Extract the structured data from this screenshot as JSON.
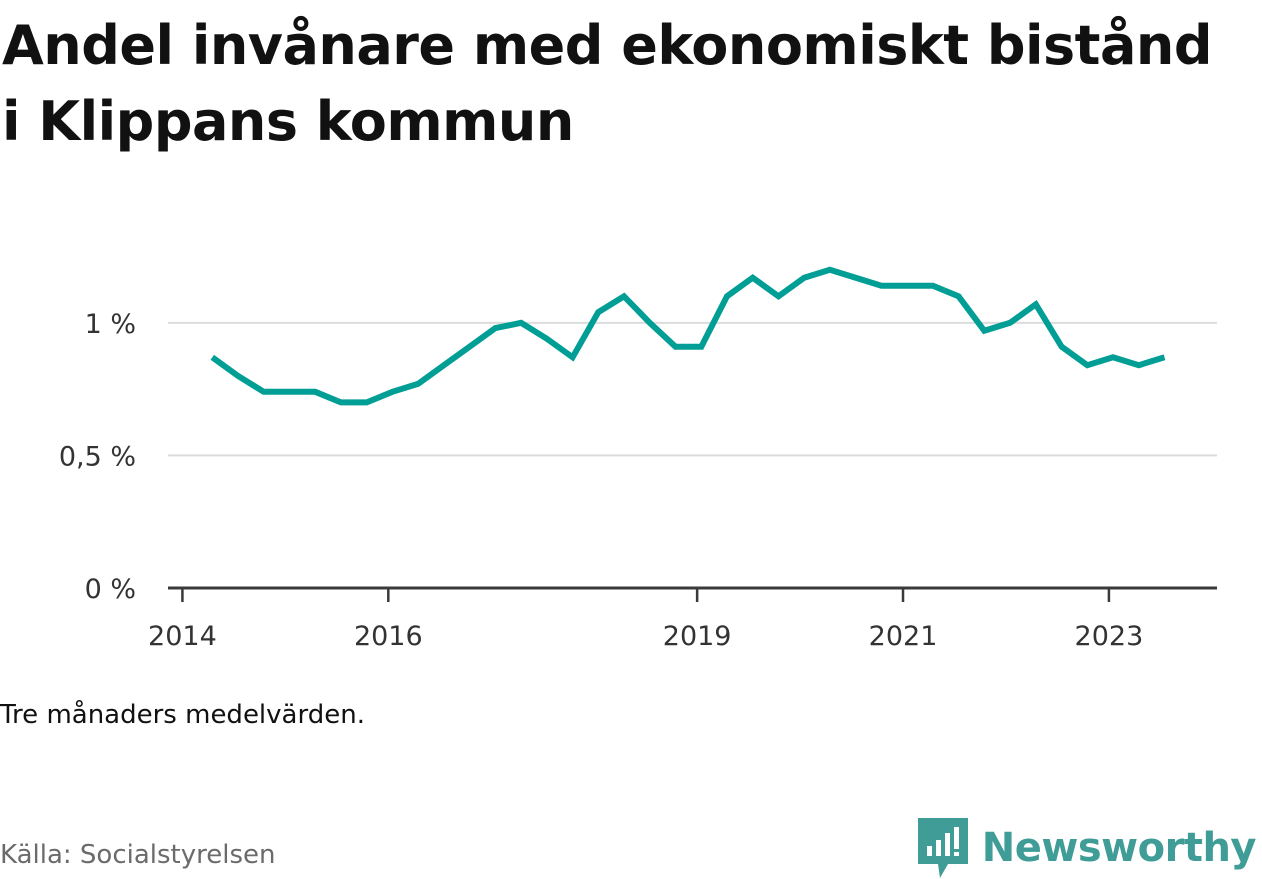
{
  "title": "Andel invånare med ekonomiskt bistånd i Klippans kommun",
  "note": "Tre månaders medelvärden.",
  "source": "Källa: Socialstyrelsen",
  "brand": {
    "name": "Newsworthy",
    "icon": "newsworthy-logo-icon",
    "color": "#3f9c96"
  },
  "chart_data": {
    "type": "line",
    "title": "Andel invånare med ekonomiskt bistånd i Klippans kommun",
    "xlabel": "",
    "ylabel": "",
    "y_ticks": [
      {
        "value": 0,
        "label": "0 %"
      },
      {
        "value": 0.5,
        "label": "0,5 %"
      },
      {
        "value": 1,
        "label": "1 %"
      }
    ],
    "x_ticks": [
      {
        "value": 2014.0,
        "label": "2014"
      },
      {
        "value": 2016.0,
        "label": "2016"
      },
      {
        "value": 2019.0,
        "label": "2019"
      },
      {
        "value": 2021.0,
        "label": "2021"
      },
      {
        "value": 2023.0,
        "label": "2023"
      }
    ],
    "xlim": [
      2013.86,
      2024.05
    ],
    "ylim": [
      0,
      1.35
    ],
    "grid": true,
    "color": "#009e94",
    "series": [
      {
        "name": "",
        "points": [
          [
            2014.29,
            0.87
          ],
          [
            2014.54,
            0.8
          ],
          [
            2014.79,
            0.74
          ],
          [
            2015.04,
            0.74
          ],
          [
            2015.29,
            0.74
          ],
          [
            2015.54,
            0.7
          ],
          [
            2015.79,
            0.7
          ],
          [
            2016.04,
            0.74
          ],
          [
            2016.29,
            0.77
          ],
          [
            2016.54,
            0.84
          ],
          [
            2016.79,
            0.91
          ],
          [
            2017.04,
            0.98
          ],
          [
            2017.29,
            1.0
          ],
          [
            2017.54,
            0.94
          ],
          [
            2017.79,
            0.87
          ],
          [
            2018.04,
            1.04
          ],
          [
            2018.29,
            1.1
          ],
          [
            2018.54,
            1.0
          ],
          [
            2018.79,
            0.91
          ],
          [
            2019.04,
            0.91
          ],
          [
            2019.29,
            1.1
          ],
          [
            2019.54,
            1.17
          ],
          [
            2019.79,
            1.1
          ],
          [
            2020.04,
            1.17
          ],
          [
            2020.29,
            1.2
          ],
          [
            2020.54,
            1.17
          ],
          [
            2020.79,
            1.14
          ],
          [
            2021.04,
            1.14
          ],
          [
            2021.29,
            1.14
          ],
          [
            2021.54,
            1.1
          ],
          [
            2021.79,
            0.97
          ],
          [
            2022.04,
            1.0
          ],
          [
            2022.29,
            1.07
          ],
          [
            2022.54,
            0.91
          ],
          [
            2022.79,
            0.84
          ],
          [
            2023.04,
            0.87
          ],
          [
            2023.29,
            0.84
          ],
          [
            2023.54,
            0.87
          ]
        ]
      }
    ]
  }
}
